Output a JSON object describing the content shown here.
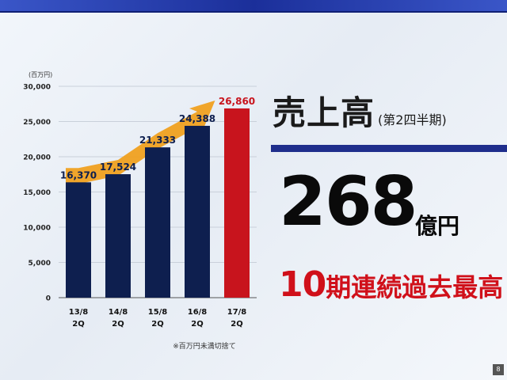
{
  "headline": {
    "title": "売上高",
    "subtitle": "(第2四半期)",
    "value": "268",
    "unit": "億円",
    "record_number": "10",
    "record_text": "期連続過去最高"
  },
  "page_number": "8",
  "colors": {
    "bar_default": "#0e1f4f",
    "bar_highlight": "#c8141d",
    "trend_arrow": "#f0a020",
    "title_rule": "#1f2e8c",
    "record_text": "#d0101a"
  },
  "chart_data": {
    "type": "bar",
    "unit_label": "(百万円)",
    "categories": [
      [
        "13/8",
        "2Q"
      ],
      [
        "14/8",
        "2Q"
      ],
      [
        "15/8",
        "2Q"
      ],
      [
        "16/8",
        "2Q"
      ],
      [
        "17/8",
        "2Q"
      ]
    ],
    "values": [
      16370,
      17524,
      21333,
      24388,
      26860
    ],
    "value_labels": [
      "16,370",
      "17,524",
      "21,333",
      "24,388",
      "26,860"
    ],
    "highlight_index": 4,
    "ylim": [
      0,
      30000
    ],
    "yticks": [
      0,
      5000,
      10000,
      15000,
      20000,
      25000,
      30000
    ],
    "ytick_labels": [
      "0",
      "5,000",
      "10,000",
      "15,000",
      "20,000",
      "25,000",
      "30,000"
    ],
    "grid": true,
    "trend_arrow": true,
    "footnote": "※百万円未満切捨て"
  }
}
